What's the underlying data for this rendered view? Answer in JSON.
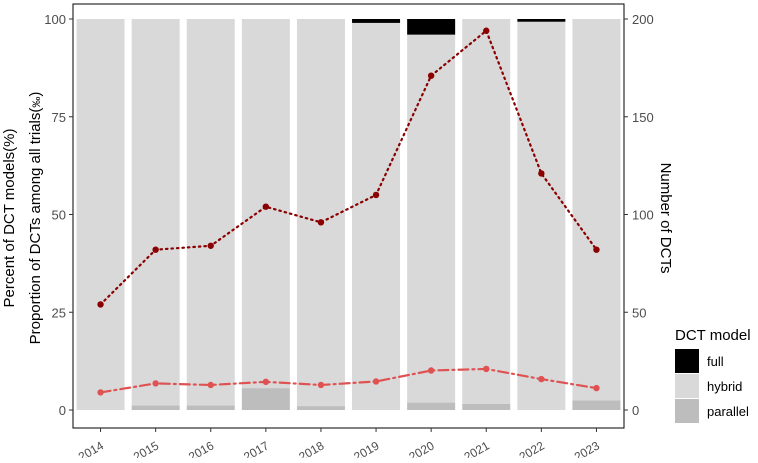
{
  "chart_data": {
    "type": "bar",
    "categories": [
      "2014",
      "2015",
      "2016",
      "2017",
      "2018",
      "2019",
      "2020",
      "2021",
      "2022",
      "2023"
    ],
    "stacked_bars": {
      "ylabel": "Percent of DCT models(%)",
      "ylim": [
        0,
        100
      ],
      "yticks": [
        0,
        25,
        50,
        75,
        100
      ],
      "series": [
        {
          "name": "parallel",
          "color": "#bdbdbd",
          "values": [
            0.0,
            1.2,
            1.2,
            5.6,
            1.0,
            0.0,
            1.9,
            1.6,
            0.0,
            2.5
          ]
        },
        {
          "name": "hybrid",
          "color": "#d9d9d9",
          "values": [
            100.0,
            98.8,
            98.8,
            94.4,
            99.0,
            99.0,
            94.1,
            98.4,
            99.3,
            97.5
          ]
        },
        {
          "name": "full",
          "color": "#000000",
          "values": [
            0.0,
            0.0,
            0.0,
            0.0,
            0.0,
            1.0,
            4.0,
            0.0,
            0.7,
            0.0
          ]
        }
      ]
    },
    "lines": [
      {
        "axis": "left",
        "label": "Proportion of DCTs among all trials(‰)",
        "style": "dashdot",
        "color": "#e05252",
        "values": [
          4.5,
          6.8,
          6.4,
          7.2,
          6.4,
          7.3,
          10.1,
          10.5,
          7.9,
          5.6
        ]
      },
      {
        "axis": "right",
        "label": "Number of DCTs",
        "style": "dotted",
        "color": "#8b0000",
        "values": [
          54,
          82,
          84,
          104,
          96,
          110,
          171,
          194,
          121,
          82
        ]
      }
    ],
    "y2label": "Number of DCTs",
    "y2lim": [
      0,
      200
    ],
    "y2ticks": [
      0,
      50,
      100,
      150,
      200
    ],
    "ylabel_second": "Proportion of DCTs among all trials(",
    "ylabel_second_unit": "‰",
    "ylabel_second_end": ")",
    "legend": {
      "title": "DCT model",
      "position": "right",
      "items": [
        {
          "label": "full",
          "color": "#000000"
        },
        {
          "label": "hybrid",
          "color": "#d9d9d9"
        },
        {
          "label": "parallel",
          "color": "#bdbdbd"
        }
      ]
    }
  }
}
